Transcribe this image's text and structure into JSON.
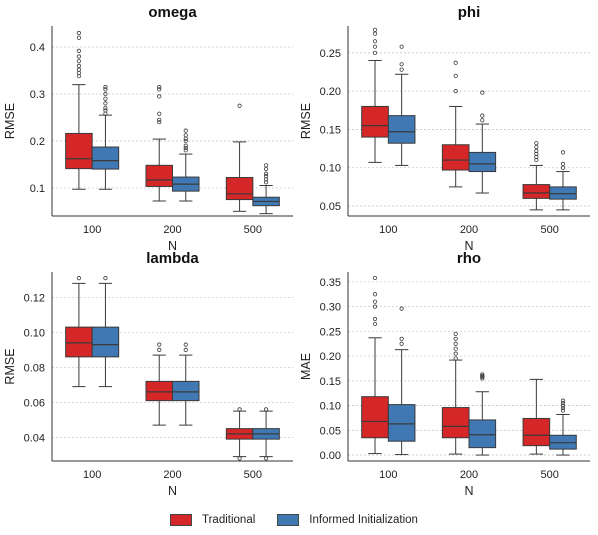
{
  "colors": {
    "traditional": "#d62728",
    "informed": "#3f78b2"
  },
  "legend": [
    {
      "label": "Traditional",
      "color": "#d62728"
    },
    {
      "label": "Informed Initialization",
      "color": "#3f78b2"
    }
  ],
  "chart_data": [
    {
      "type": "box",
      "title": "omega",
      "xlabel": "N",
      "ylabel": "RMSE",
      "categories": [
        "100",
        "200",
        "500"
      ],
      "ylim": [
        0.04,
        0.445
      ],
      "yticks": [
        "0.1",
        "0.2",
        "0.3",
        "0.4"
      ],
      "series": [
        {
          "name": "Traditional",
          "boxes": [
            {
              "whislo": 0.097,
              "q1": 0.141,
              "med": 0.162,
              "q3": 0.216,
              "whishi": 0.32,
              "fliers": [
                0.338,
                0.345,
                0.352,
                0.36,
                0.37,
                0.38,
                0.392,
                0.42,
                0.43
              ]
            },
            {
              "whislo": 0.072,
              "q1": 0.103,
              "med": 0.117,
              "q3": 0.148,
              "whishi": 0.204,
              "fliers": [
                0.24,
                0.245,
                0.258,
                0.295,
                0.31,
                0.315
              ]
            },
            {
              "whislo": 0.05,
              "q1": 0.075,
              "med": 0.087,
              "q3": 0.122,
              "whishi": 0.198,
              "fliers": [
                0.275
              ]
            }
          ]
        },
        {
          "name": "Informed Initialization",
          "boxes": [
            {
              "whislo": 0.097,
              "q1": 0.14,
              "med": 0.158,
              "q3": 0.187,
              "whishi": 0.255,
              "fliers": [
                0.258,
                0.265,
                0.27,
                0.28,
                0.29,
                0.3,
                0.31,
                0.315
              ]
            },
            {
              "whislo": 0.072,
              "q1": 0.093,
              "med": 0.108,
              "q3": 0.123,
              "whishi": 0.172,
              "fliers": [
                0.18,
                0.185,
                0.19,
                0.2,
                0.205,
                0.212,
                0.222
              ]
            },
            {
              "whislo": 0.045,
              "q1": 0.062,
              "med": 0.071,
              "q3": 0.08,
              "whishi": 0.105,
              "fliers": [
                0.112,
                0.118,
                0.125,
                0.13,
                0.14,
                0.148
              ]
            }
          ]
        }
      ]
    },
    {
      "type": "box",
      "title": "phi",
      "xlabel": "N",
      "ylabel": "RMSE",
      "categories": [
        "100",
        "200",
        "500"
      ],
      "ylim": [
        0.037,
        0.285
      ],
      "yticks": [
        "0.05",
        "0.10",
        "0.15",
        "0.20",
        "0.25"
      ],
      "series": [
        {
          "name": "Traditional",
          "boxes": [
            {
              "whislo": 0.107,
              "q1": 0.14,
              "med": 0.155,
              "q3": 0.18,
              "whishi": 0.24,
              "fliers": [
                0.25,
                0.258,
                0.265,
                0.275,
                0.28
              ]
            },
            {
              "whislo": 0.075,
              "q1": 0.097,
              "med": 0.11,
              "q3": 0.13,
              "whishi": 0.18,
              "fliers": [
                0.2,
                0.22,
                0.237
              ]
            },
            {
              "whislo": 0.045,
              "q1": 0.06,
              "med": 0.067,
              "q3": 0.078,
              "whishi": 0.103,
              "fliers": [
                0.11,
                0.114,
                0.118,
                0.122,
                0.127,
                0.132
              ]
            }
          ]
        },
        {
          "name": "Informed Initialization",
          "boxes": [
            {
              "whislo": 0.103,
              "q1": 0.132,
              "med": 0.147,
              "q3": 0.168,
              "whishi": 0.222,
              "fliers": [
                0.228,
                0.235,
                0.258
              ]
            },
            {
              "whislo": 0.067,
              "q1": 0.095,
              "med": 0.105,
              "q3": 0.12,
              "whishi": 0.157,
              "fliers": [
                0.162,
                0.168,
                0.198
              ]
            },
            {
              "whislo": 0.045,
              "q1": 0.059,
              "med": 0.066,
              "q3": 0.075,
              "whishi": 0.095,
              "fliers": [
                0.1,
                0.105,
                0.12
              ]
            }
          ]
        }
      ]
    },
    {
      "type": "box",
      "title": "lambda",
      "xlabel": "N",
      "ylabel": "RMSE",
      "categories": [
        "100",
        "200",
        "500"
      ],
      "ylim": [
        0.0265,
        0.1345
      ],
      "yticks": [
        "0.04",
        "0.06",
        "0.08",
        "0.10",
        "0.12"
      ],
      "series": [
        {
          "name": "Traditional",
          "boxes": [
            {
              "whislo": 0.069,
              "q1": 0.086,
              "med": 0.094,
              "q3": 0.103,
              "whishi": 0.128,
              "fliers": [
                0.131
              ]
            },
            {
              "whislo": 0.047,
              "q1": 0.061,
              "med": 0.066,
              "q3": 0.072,
              "whishi": 0.087,
              "fliers": [
                0.09,
                0.093
              ]
            },
            {
              "whislo": 0.029,
              "q1": 0.039,
              "med": 0.042,
              "q3": 0.045,
              "whishi": 0.055,
              "fliers": [
                0.028,
                0.056
              ]
            }
          ]
        },
        {
          "name": "Informed Initialization",
          "boxes": [
            {
              "whislo": 0.069,
              "q1": 0.086,
              "med": 0.093,
              "q3": 0.103,
              "whishi": 0.128,
              "fliers": [
                0.131
              ]
            },
            {
              "whislo": 0.047,
              "q1": 0.061,
              "med": 0.066,
              "q3": 0.072,
              "whishi": 0.087,
              "fliers": [
                0.09,
                0.093
              ]
            },
            {
              "whislo": 0.029,
              "q1": 0.039,
              "med": 0.042,
              "q3": 0.045,
              "whishi": 0.055,
              "fliers": [
                0.028,
                0.056
              ]
            }
          ]
        }
      ]
    },
    {
      "type": "box",
      "title": "rho",
      "xlabel": "N",
      "ylabel": "MAE",
      "categories": [
        "100",
        "200",
        "500"
      ],
      "ylim": [
        -0.012,
        0.37
      ],
      "yticks": [
        "0.00",
        "0.05",
        "0.10",
        "0.15",
        "0.20",
        "0.25",
        "0.30",
        "0.35"
      ],
      "series": [
        {
          "name": "Traditional",
          "boxes": [
            {
              "whislo": 0.003,
              "q1": 0.035,
              "med": 0.068,
              "q3": 0.118,
              "whishi": 0.237,
              "fliers": [
                0.265,
                0.275,
                0.3,
                0.31,
                0.325,
                0.358
              ]
            },
            {
              "whislo": 0.002,
              "q1": 0.035,
              "med": 0.058,
              "q3": 0.096,
              "whishi": 0.192,
              "fliers": [
                0.195,
                0.205,
                0.215,
                0.225,
                0.235,
                0.245
              ]
            },
            {
              "whislo": 0.002,
              "q1": 0.019,
              "med": 0.04,
              "q3": 0.074,
              "whishi": 0.153,
              "fliers": []
            }
          ]
        },
        {
          "name": "Informed Initialization",
          "boxes": [
            {
              "whislo": 0.001,
              "q1": 0.028,
              "med": 0.063,
              "q3": 0.102,
              "whishi": 0.213,
              "fliers": [
                0.225,
                0.235,
                0.296
              ]
            },
            {
              "whislo": 0.0,
              "q1": 0.015,
              "med": 0.041,
              "q3": 0.071,
              "whishi": 0.128,
              "fliers": [
                0.155,
                0.158,
                0.16,
                0.163
              ]
            },
            {
              "whislo": 0.0,
              "q1": 0.012,
              "med": 0.025,
              "q3": 0.04,
              "whishi": 0.082,
              "fliers": [
                0.09,
                0.095,
                0.1,
                0.105,
                0.11
              ]
            }
          ]
        }
      ]
    }
  ]
}
